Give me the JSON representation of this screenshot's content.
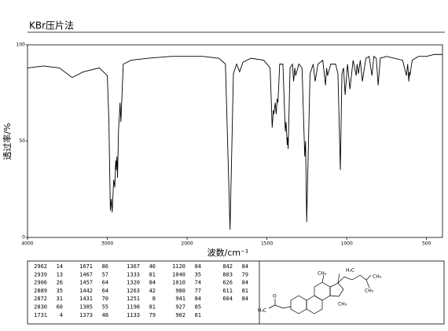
{
  "chart_data": {
    "type": "line",
    "title": "KBr压片法",
    "x_label": "波数/cm⁻¹",
    "y_label": "透过率/%",
    "xlim": [
      4000,
      400
    ],
    "x_scale_change": {
      "at": 2000,
      "factor": 2
    },
    "xticks": [
      4000,
      3000,
      2000,
      1500,
      1000,
      500
    ],
    "ylim": [
      0,
      100
    ],
    "yticks": [
      0,
      50,
      100
    ],
    "color": "#000000",
    "x": [
      4000,
      3800,
      3600,
      3440,
      3300,
      3100,
      3000,
      2980,
      2962,
      2950,
      2939,
      2920,
      2906,
      2895,
      2889,
      2880,
      2872,
      2860,
      2840,
      2830,
      2800,
      2700,
      2500,
      2200,
      2000,
      1900,
      1800,
      1760,
      1731,
      1710,
      1690,
      1671,
      1650,
      1600,
      1520,
      1480,
      1467,
      1460,
      1457,
      1448,
      1442,
      1436,
      1431,
      1420,
      1400,
      1385,
      1380,
      1373,
      1370,
      1367,
      1355,
      1340,
      1333,
      1325,
      1320,
      1300,
      1280,
      1263,
      1258,
      1251,
      1230,
      1210,
      1198,
      1180,
      1150,
      1133,
      1126,
      1120,
      1100,
      1070,
      1055,
      1040,
      1030,
      1020,
      1010,
      995,
      980,
      960,
      941,
      935,
      927,
      915,
      902,
      880,
      860,
      842,
      830,
      815,
      803,
      790,
      750,
      700,
      650,
      626,
      618,
      611,
      607,
      604,
      590,
      550,
      500,
      450,
      400
    ],
    "values": [
      88,
      89,
      88,
      83,
      86,
      88,
      84,
      60,
      14,
      20,
      13,
      30,
      26,
      40,
      35,
      42,
      31,
      55,
      70,
      60,
      90,
      92,
      93,
      94,
      94,
      94,
      93,
      90,
      4,
      85,
      90,
      86,
      91,
      93,
      92,
      88,
      57,
      66,
      64,
      70,
      64,
      72,
      70,
      90,
      90,
      55,
      60,
      48,
      52,
      46,
      88,
      90,
      81,
      88,
      84,
      90,
      88,
      42,
      50,
      8,
      85,
      90,
      81,
      90,
      92,
      79,
      88,
      84,
      90,
      90,
      85,
      35,
      85,
      88,
      74,
      90,
      77,
      92,
      84,
      90,
      85,
      92,
      81,
      93,
      94,
      84,
      94,
      93,
      79,
      93,
      94,
      93,
      92,
      84,
      90,
      81,
      86,
      84,
      92,
      94,
      94,
      95,
      95
    ]
  },
  "peak_table": [
    [
      [
        2962,
        14
      ],
      [
        2939,
        13
      ],
      [
        2906,
        26
      ],
      [
        2889,
        35
      ],
      [
        2872,
        31
      ],
      [
        2830,
        60
      ],
      [
        1731,
        4
      ]
    ],
    [
      [
        1671,
        86
      ],
      [
        1467,
        57
      ],
      [
        1457,
        64
      ],
      [
        1442,
        64
      ],
      [
        1431,
        70
      ],
      [
        1385,
        55
      ],
      [
        1373,
        48
      ]
    ],
    [
      [
        1367,
        46
      ],
      [
        1333,
        81
      ],
      [
        1320,
        84
      ],
      [
        1263,
        42
      ],
      [
        1251,
        8
      ],
      [
        1198,
        81
      ],
      [
        1133,
        79
      ]
    ],
    [
      [
        1120,
        84
      ],
      [
        1040,
        35
      ],
      [
        1010,
        74
      ],
      [
        980,
        77
      ],
      [
        941,
        84
      ],
      [
        927,
        85
      ],
      [
        902,
        81
      ]
    ],
    [
      [
        842,
        84
      ],
      [
        803,
        79
      ],
      [
        626,
        84
      ],
      [
        611,
        81
      ],
      [
        604,
        84
      ]
    ]
  ],
  "structure_labels": [
    "H₃C",
    "CH₃",
    "CH₃",
    "CH₃",
    "CH₃",
    "O",
    "H₃C"
  ]
}
